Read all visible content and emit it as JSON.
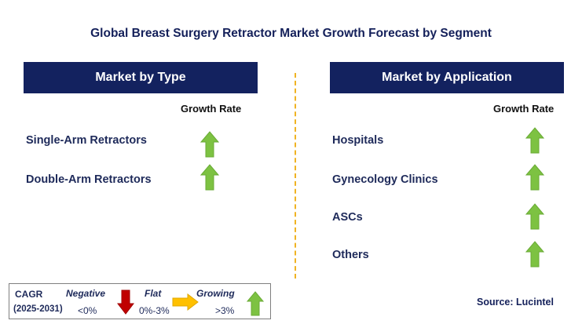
{
  "title": "Global Breast Surgery Retractor Market Growth Forecast by Segment",
  "type_panel": {
    "header": "Market by Type",
    "growth_label": "Growth Rate",
    "items": [
      {
        "label": "Single-Arm Retractors",
        "trend": "growing"
      },
      {
        "label": "Double-Arm Retractors",
        "trend": "growing"
      }
    ]
  },
  "application_panel": {
    "header": "Market by Application",
    "growth_label": "Growth Rate",
    "items": [
      {
        "label": "Hospitals",
        "trend": "growing"
      },
      {
        "label": "Gynecology Clinics",
        "trend": "growing"
      },
      {
        "label": "ASCs",
        "trend": "growing"
      },
      {
        "label": "Others",
        "trend": "growing"
      }
    ]
  },
  "legend": {
    "cagr_label": "CAGR",
    "period": "(2025-2031)",
    "negative": {
      "label": "Negative",
      "range": "<0%",
      "icon": "down-arrow-icon"
    },
    "flat": {
      "label": "Flat",
      "range": "0%-3%",
      "icon": "right-arrow-icon"
    },
    "growing": {
      "label": "Growing",
      "range": ">3%",
      "icon": "up-arrow-icon"
    }
  },
  "source": "Source: Lucintel",
  "colors": {
    "banner": "#13225f",
    "growing": "#7dc242",
    "negative": "#c00000",
    "flat": "#ffc000",
    "divider": "#f0b323"
  }
}
